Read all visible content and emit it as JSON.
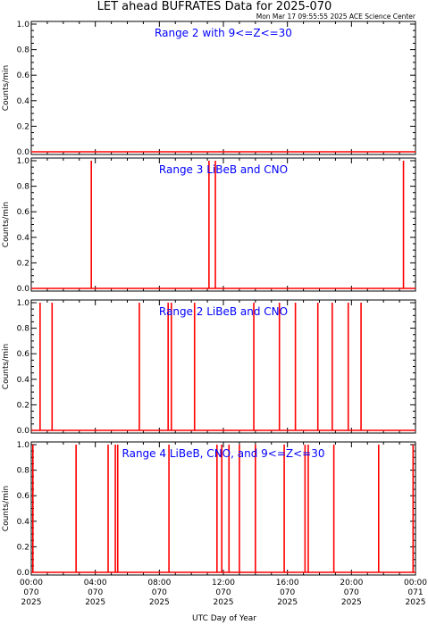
{
  "title": "LET ahead BUFRATES Data for 2025-070",
  "timestamp": "Mon Mar 17 09:55:55 2025 ACE Science Center",
  "xlabel": "UTC Day of Year",
  "colors": {
    "series": "#ff0000",
    "panel_title": "#0000ff",
    "axes": "#000000"
  },
  "x_ticks": [
    {
      "hour": 0,
      "lines": [
        "00:00",
        "070",
        "2025"
      ]
    },
    {
      "hour": 4,
      "lines": [
        "04:00",
        "070",
        "2025"
      ]
    },
    {
      "hour": 8,
      "lines": [
        "08:00",
        "070",
        "2025"
      ]
    },
    {
      "hour": 12,
      "lines": [
        "12:00",
        "070",
        "2025"
      ]
    },
    {
      "hour": 16,
      "lines": [
        "16:00",
        "070",
        "2025"
      ]
    },
    {
      "hour": 20,
      "lines": [
        "20:00",
        "070",
        "2025"
      ]
    },
    {
      "hour": 24,
      "lines": [
        "00:00",
        "071",
        "2025"
      ]
    }
  ],
  "chart_data": [
    {
      "type": "line",
      "title": "Range 2 with 9<=Z<=30",
      "ylabel": "Counts/min",
      "ylim": [
        0,
        1
      ],
      "y_ticks": [
        "0.0",
        "0.2",
        "0.4",
        "0.6",
        "0.8",
        "1.0"
      ],
      "xlim_hours": [
        0,
        24
      ],
      "spikes_hours": []
    },
    {
      "type": "line",
      "title": "Range 3 LiBeB and CNO",
      "ylabel": "Counts/min",
      "ylim": [
        0,
        1
      ],
      "y_ticks": [
        "0.0",
        "0.2",
        "0.4",
        "0.6",
        "0.8",
        "1.0"
      ],
      "xlim_hours": [
        0,
        24
      ],
      "spikes_hours": [
        3.75,
        11.1,
        11.5,
        23.25
      ]
    },
    {
      "type": "line",
      "title": "Range 2 LiBeB and CNO",
      "ylabel": "Counts/min",
      "ylim": [
        0,
        1
      ],
      "y_ticks": [
        "0.0",
        "0.2",
        "0.4",
        "0.6",
        "0.8",
        "1.0"
      ],
      "xlim_hours": [
        0,
        24
      ],
      "spikes_hours": [
        0.55,
        1.3,
        6.75,
        8.55,
        8.75,
        10.2,
        13.9,
        15.5,
        16.5,
        17.9,
        18.8,
        19.8,
        20.6
      ]
    },
    {
      "type": "line",
      "title": "Range 4 LiBeB, CNO, and 9<=Z<=30",
      "ylabel": "Counts/min",
      "ylim": [
        0,
        1
      ],
      "y_ticks": [
        "0.0",
        "0.2",
        "0.4",
        "0.6",
        "0.8",
        "1.0"
      ],
      "xlim_hours": [
        0,
        24
      ],
      "spikes_hours": [
        0.1,
        2.8,
        4.8,
        5.25,
        5.4,
        8.6,
        11.6,
        11.9,
        12.35,
        13.0,
        14.0,
        15.8,
        17.1,
        17.3,
        18.9,
        21.7,
        23.85
      ]
    }
  ]
}
